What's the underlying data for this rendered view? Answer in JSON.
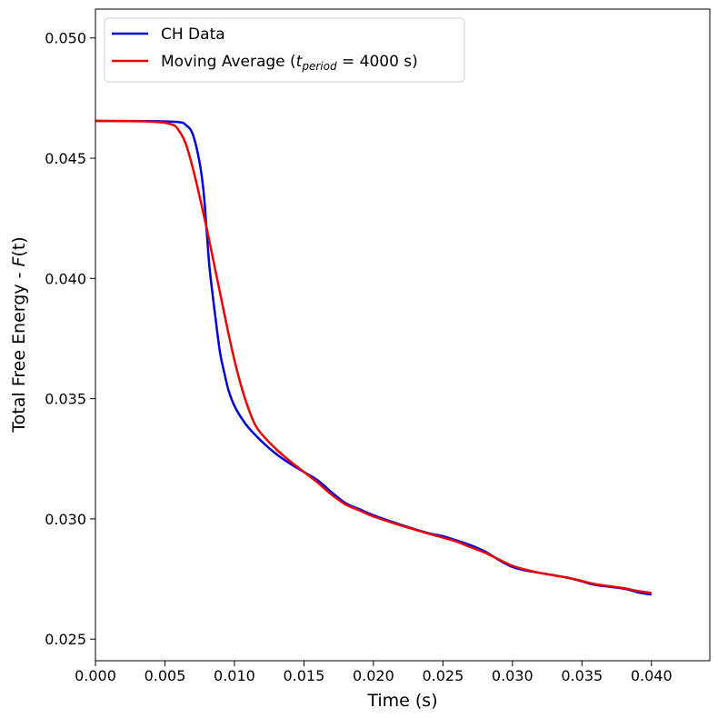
{
  "chart_data": {
    "type": "line",
    "xlabel": "Time (s)",
    "ylabel": "Total Free Energy - F(t)",
    "ylabel_parts": {
      "prefix": "Total Free Energy - ",
      "var": "F",
      "suffix": "(t)"
    },
    "xlim": [
      0.0,
      0.0442
    ],
    "ylim": [
      0.0241,
      0.0512
    ],
    "x_ticks": [
      "0.000",
      "0.005",
      "0.010",
      "0.015",
      "0.020",
      "0.025",
      "0.030",
      "0.035",
      "0.040"
    ],
    "y_ticks": [
      "0.025",
      "0.030",
      "0.035",
      "0.040",
      "0.045",
      "0.050"
    ],
    "grid": false,
    "legend_position": "upper-left",
    "legend": {
      "ch_label": "CH Data",
      "ma_prefix": "Moving Average (",
      "ma_var": "t",
      "ma_sub": "period",
      "ma_suffix": " = 4000 s)"
    },
    "series": [
      {
        "name": "CH Data",
        "color": "#0000dd",
        "x": [
          0.0,
          0.004,
          0.006,
          0.0065,
          0.007,
          0.0075,
          0.0078,
          0.008,
          0.0082,
          0.0085,
          0.0088,
          0.009,
          0.0093,
          0.0096,
          0.01,
          0.0105,
          0.011,
          0.012,
          0.013,
          0.014,
          0.015,
          0.016,
          0.017,
          0.018,
          0.019,
          0.02,
          0.022,
          0.024,
          0.025,
          0.026,
          0.027,
          0.028,
          0.029,
          0.03,
          0.031,
          0.032,
          0.034,
          0.035,
          0.036,
          0.038,
          0.039,
          0.04
        ],
        "y": [
          0.04655,
          0.04654,
          0.0465,
          0.04638,
          0.046,
          0.0448,
          0.0435,
          0.042,
          0.0405,
          0.039,
          0.0376,
          0.0368,
          0.036,
          0.0353,
          0.0347,
          0.0342,
          0.0338,
          0.0332,
          0.0327,
          0.0323,
          0.03195,
          0.0316,
          0.0311,
          0.03065,
          0.0304,
          0.03015,
          0.02975,
          0.0294,
          0.02928,
          0.0291,
          0.0289,
          0.02865,
          0.0283,
          0.028,
          0.02785,
          0.02775,
          0.02755,
          0.0274,
          0.02725,
          0.0271,
          0.02695,
          0.02685
        ]
      },
      {
        "name": "Moving Average (t_period = 4000 s)",
        "color": "#ee0000",
        "x": [
          0.0,
          0.004,
          0.0055,
          0.006,
          0.0065,
          0.007,
          0.0075,
          0.008,
          0.0085,
          0.009,
          0.0095,
          0.01,
          0.0105,
          0.011,
          0.0115,
          0.012,
          0.013,
          0.014,
          0.015,
          0.016,
          0.017,
          0.018,
          0.019,
          0.02,
          0.022,
          0.024,
          0.025,
          0.026,
          0.027,
          0.028,
          0.029,
          0.03,
          0.031,
          0.032,
          0.034,
          0.035,
          0.036,
          0.038,
          0.039,
          0.04
        ],
        "y": [
          0.04655,
          0.04652,
          0.0464,
          0.04615,
          0.0456,
          0.0446,
          0.0434,
          0.0421,
          0.0407,
          0.0393,
          0.0379,
          0.0366,
          0.0355,
          0.0346,
          0.0339,
          0.0335,
          0.0329,
          0.0324,
          0.03195,
          0.0315,
          0.031,
          0.0306,
          0.03035,
          0.0301,
          0.02972,
          0.02938,
          0.02922,
          0.02905,
          0.02882,
          0.0286,
          0.02832,
          0.02805,
          0.02788,
          0.02775,
          0.02755,
          0.02742,
          0.02728,
          0.02712,
          0.027,
          0.02692
        ]
      }
    ]
  }
}
